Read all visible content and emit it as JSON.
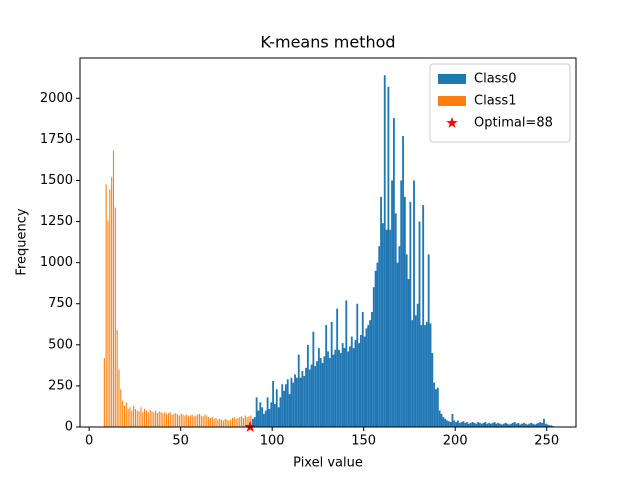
{
  "chart_data": {
    "type": "histogram",
    "title": "K-means method",
    "x_label": "Pixel value",
    "y_label": "Frequency",
    "xlim": [
      -5,
      266
    ],
    "ylim": [
      0,
      2245
    ],
    "xticks": [
      0,
      50,
      100,
      150,
      200,
      250
    ],
    "yticks": [
      0,
      250,
      500,
      750,
      1000,
      1250,
      1500,
      1750,
      2000
    ],
    "legend": "upper right",
    "series": [
      {
        "name": "Class0",
        "color": "#1f77b4",
        "bins": [
          89,
          90,
          91,
          92,
          93,
          94,
          95,
          96,
          97,
          98,
          99,
          100,
          101,
          102,
          103,
          104,
          105,
          106,
          107,
          108,
          109,
          110,
          111,
          112,
          113,
          114,
          115,
          116,
          117,
          118,
          119,
          120,
          121,
          122,
          123,
          124,
          125,
          126,
          127,
          128,
          129,
          130,
          131,
          132,
          133,
          134,
          135,
          136,
          137,
          138,
          139,
          140,
          141,
          142,
          143,
          144,
          145,
          146,
          147,
          148,
          149,
          150,
          151,
          152,
          153,
          154,
          155,
          156,
          157,
          158,
          159,
          160,
          161,
          162,
          163,
          164,
          165,
          166,
          167,
          168,
          169,
          170,
          171,
          172,
          173,
          174,
          175,
          176,
          177,
          178,
          179,
          180,
          181,
          182,
          183,
          184,
          185,
          186,
          187,
          188,
          189,
          190,
          191,
          192,
          193,
          194,
          195,
          196,
          197,
          198,
          199,
          200,
          201,
          202,
          203,
          204,
          205,
          206,
          207,
          208,
          209,
          210,
          211,
          212,
          213,
          214,
          215,
          216,
          217,
          218,
          219,
          220,
          221,
          222,
          223,
          224,
          225,
          226,
          227,
          228,
          229,
          230,
          231,
          232,
          233,
          234,
          235,
          236,
          237,
          238,
          239,
          240,
          241,
          242,
          243,
          244,
          245,
          246,
          247,
          248,
          249,
          250,
          251,
          252,
          253,
          254,
          255
        ],
        "values": [
          50,
          60,
          180,
          100,
          150,
          120,
          80,
          100,
          180,
          110,
          150,
          280,
          140,
          230,
          120,
          180,
          260,
          220,
          260,
          290,
          200,
          300,
          270,
          320,
          300,
          440,
          300,
          340,
          310,
          360,
          500,
          350,
          380,
          580,
          370,
          400,
          480,
          420,
          390,
          430,
          620,
          460,
          420,
          640,
          440,
          470,
          720,
          470,
          450,
          510,
          480,
          770,
          460,
          490,
          550,
          480,
          530,
          750,
          510,
          560,
          700,
          550,
          600,
          620,
          650,
          700,
          850,
          950,
          1000,
          1100,
          1400,
          1240,
          2140,
          1200,
          2070,
          1200,
          1500,
          1880,
          1300,
          1000,
          1100,
          1500,
          1770,
          1400,
          1050,
          900,
          1370,
          650,
          1500,
          680,
          750,
          1250,
          620,
          1350,
          620,
          640,
          1050,
          630,
          450,
          270,
          230,
          240,
          100,
          80,
          60,
          50,
          40,
          35,
          30,
          80,
          40,
          30,
          40,
          25,
          30,
          35,
          25,
          30,
          20,
          25,
          30,
          25,
          20,
          30,
          25,
          20,
          25,
          30,
          20,
          25,
          20,
          25,
          30,
          20,
          25,
          20,
          15,
          20,
          25,
          20,
          15,
          20,
          25,
          30,
          20,
          25,
          15,
          20,
          25,
          20,
          15,
          20,
          25,
          20,
          15,
          20,
          25,
          30,
          25,
          50,
          20,
          15,
          10,
          10,
          5,
          0
        ]
      },
      {
        "name": "Class1",
        "color": "#ff7f0e",
        "bins": [
          8,
          9,
          10,
          11,
          12,
          13,
          14,
          15,
          16,
          17,
          18,
          19,
          20,
          21,
          22,
          23,
          24,
          25,
          26,
          27,
          28,
          29,
          30,
          31,
          32,
          33,
          34,
          35,
          36,
          37,
          38,
          39,
          40,
          41,
          42,
          43,
          44,
          45,
          46,
          47,
          48,
          49,
          50,
          51,
          52,
          53,
          54,
          55,
          56,
          57,
          58,
          59,
          60,
          61,
          62,
          63,
          64,
          65,
          66,
          67,
          68,
          69,
          70,
          71,
          72,
          73,
          74,
          75,
          76,
          77,
          78,
          79,
          80,
          81,
          82,
          83,
          84,
          85,
          86,
          87,
          88,
          89
        ],
        "values": [
          420,
          1475,
          1255,
          1445,
          1520,
          1680,
          1335,
          590,
          350,
          230,
          160,
          130,
          150,
          110,
          120,
          100,
          130,
          110,
          100,
          95,
          120,
          90,
          110,
          100,
          90,
          105,
          95,
          90,
          100,
          85,
          95,
          90,
          85,
          90,
          80,
          85,
          90,
          75,
          80,
          85,
          75,
          70,
          80,
          75,
          70,
          75,
          65,
          70,
          75,
          65,
          70,
          75,
          80,
          70,
          65,
          75,
          70,
          60,
          55,
          60,
          50,
          55,
          45,
          50,
          45,
          40,
          50,
          45,
          40,
          45,
          55,
          60,
          50,
          55,
          60,
          65,
          55,
          70,
          60,
          65,
          70
        ]
      }
    ],
    "scatter": {
      "name": "Optimal=88",
      "color": "red",
      "x": [
        88
      ],
      "y": [
        0
      ]
    }
  }
}
